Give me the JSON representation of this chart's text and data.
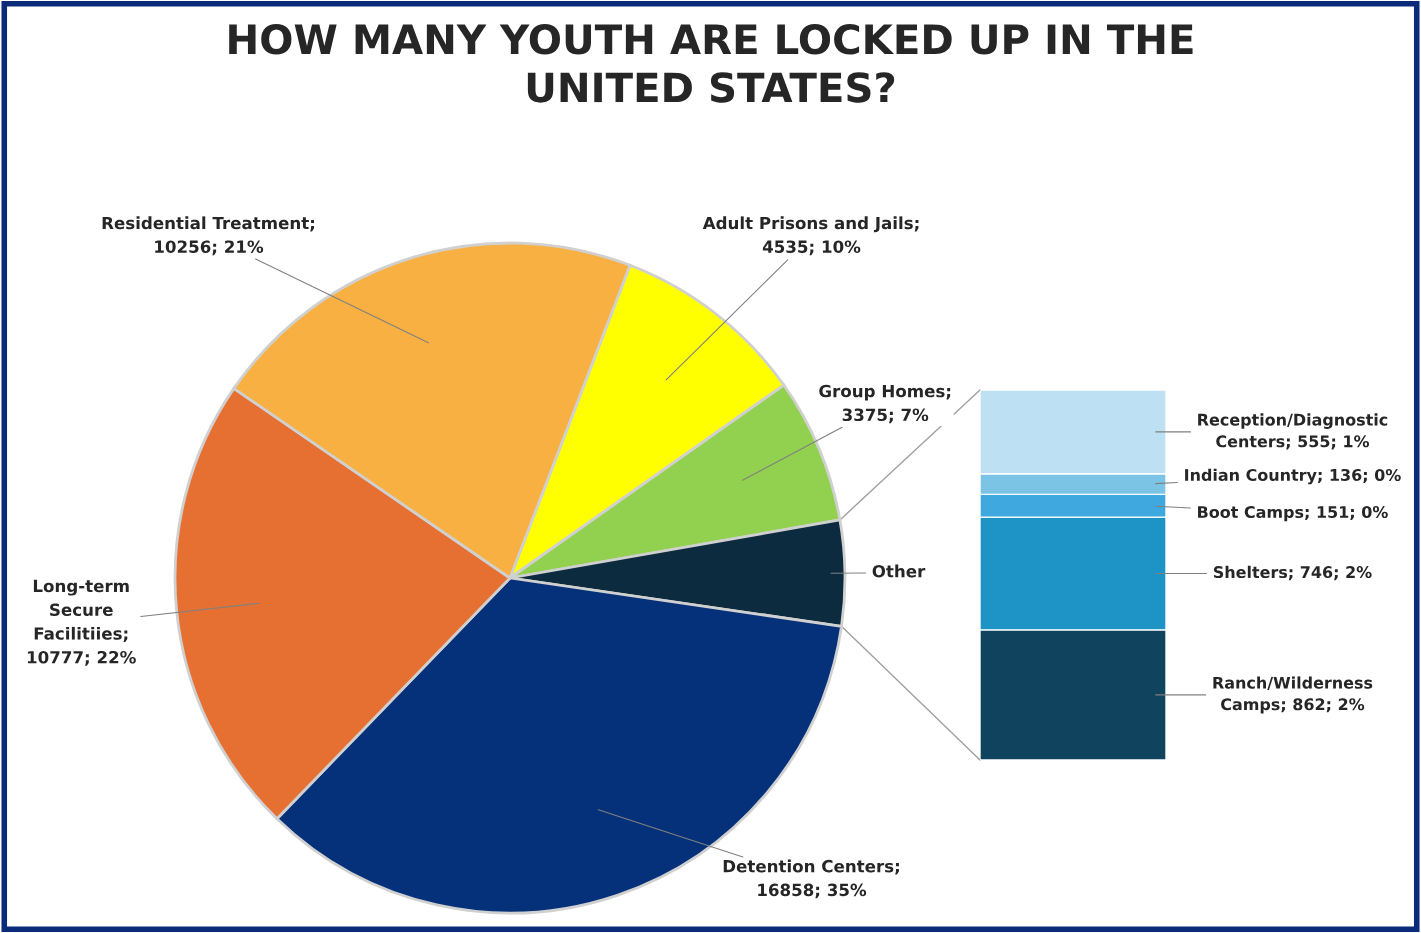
{
  "chart_data": [
    {
      "type": "pie",
      "title": "HOW MANY YOUTH ARE LOCKED UP IN THE UNITED STATES?",
      "categories": [
        null,
        null,
        "Other",
        null,
        null,
        null
      ],
      "values": [
        4535,
        3375,
        2450,
        16858,
        10777,
        10256
      ],
      "value_labels": [
        "Adult Prisons and Jails; 4535; 10%",
        "Group Homes; 3375; 7%",
        null,
        "Detention Centers; 16858; 35%",
        "Long-term Secure Facilitiies; 10777; 22%",
        "Residential Treatment; 10256; 21%"
      ],
      "colors": [
        "#ffff00",
        "#92d050",
        "#0d2b3e",
        "#04317a",
        "#e67032",
        "#f8b042"
      ]
    },
    {
      "type": "bar",
      "stacked": true,
      "categories": [
        null
      ],
      "series": [
        {
          "color": "#10435e",
          "values": [
            862
          ],
          "value_labels": [
            "Ranch/Wilderness Camps; 862; 2%"
          ]
        },
        {
          "color": "#1e93c6",
          "values": [
            746
          ],
          "value_labels": [
            "Shelters; 746; 2%"
          ]
        },
        {
          "color": "#3fa9df",
          "values": [
            151
          ],
          "value_labels": [
            "Boot Camps; 151; 0%"
          ]
        },
        {
          "color": "#7cc4e6",
          "values": [
            136
          ],
          "value_labels": [
            "Indian Country; 136; 0%"
          ]
        },
        {
          "color": "#bde0f3",
          "values": [
            555
          ],
          "value_labels": [
            "Reception/Diagnostic Centers; 555; 1%"
          ]
        }
      ]
    }
  ]
}
